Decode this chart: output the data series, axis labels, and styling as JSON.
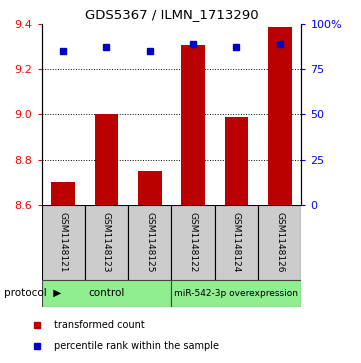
{
  "title": "GDS5367 / ILMN_1713290",
  "samples": [
    "GSM1148121",
    "GSM1148123",
    "GSM1148125",
    "GSM1148122",
    "GSM1148124",
    "GSM1148126"
  ],
  "bar_values": [
    8.7,
    9.0,
    8.75,
    9.305,
    8.99,
    9.385
  ],
  "percentile_values": [
    85.0,
    87.0,
    85.0,
    89.0,
    87.0,
    89.0
  ],
  "y_min": 8.6,
  "y_max": 9.4,
  "y_ticks": [
    8.6,
    8.8,
    9.0,
    9.2,
    9.4
  ],
  "y_right_ticks": [
    0,
    25,
    50,
    75,
    100
  ],
  "y_right_labels": [
    "0",
    "25",
    "50",
    "75",
    "100%"
  ],
  "grid_values": [
    8.8,
    9.0,
    9.2
  ],
  "bar_color": "#bb0000",
  "square_color": "#0000cc",
  "bar_baseline": 8.6,
  "protocol_labels": [
    "control",
    "miR-542-3p overexpression"
  ],
  "protocol_color": "#90ee90",
  "sample_bg_color": "#cccccc",
  "legend_items": [
    "transformed count",
    "percentile rank within the sample"
  ],
  "legend_colors": [
    "#bb0000",
    "#0000cc"
  ]
}
